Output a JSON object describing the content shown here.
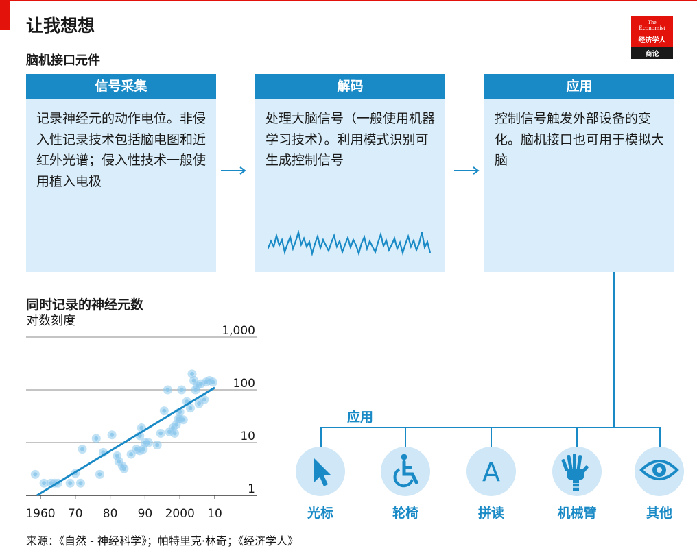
{
  "title": "让我想想",
  "subtitle": "脑机接口元件",
  "logo": {
    "line1": "The",
    "line2": "Economist",
    "line3": "经济学人",
    "line4": "商论"
  },
  "panels": [
    {
      "header": "信号采集",
      "body": "记录神经元的动作电位。非侵入性记录技术包括脑电图和近红外光谱；侵入性技术一般使用植入电极"
    },
    {
      "header": "解码",
      "body": "处理大脑信号（一般使用机器学习技术）。利用模式识别可生成控制信号"
    },
    {
      "header": "应用",
      "body": "控制信号触发外部设备的变化。脑机接口也可用于模拟大脑"
    }
  ],
  "applications": {
    "title": "应用",
    "items": [
      {
        "label": "光标",
        "icon": "cursor-icon"
      },
      {
        "label": "轮椅",
        "icon": "wheelchair-icon"
      },
      {
        "label": "拼读",
        "icon": "letter-a-icon"
      },
      {
        "label": "机械臂",
        "icon": "robot-arm-icon"
      },
      {
        "label": "其他",
        "icon": "eye-icon"
      }
    ]
  },
  "colors": {
    "accent": "#1a8ac6",
    "panel_bg": "#d9eefa",
    "icon_bg": "#cfe7f6",
    "brand_red": "#e3120b",
    "dot": "#8ec9ec"
  },
  "chart_title": "同时记录的神经元数",
  "chart_subtitle": "对数刻度",
  "source": "来源：《自然 - 神经科学》；帕特里克·林奇；《经济学人》",
  "chart_data": {
    "type": "scatter",
    "title": "同时记录的神经元数",
    "subtitle": "对数刻度",
    "y_scale": "log",
    "ylim": [
      1,
      1000
    ],
    "xlim": [
      1958,
      2012
    ],
    "x_ticks": [
      1960,
      1970,
      1980,
      1990,
      2000,
      2010
    ],
    "x_tick_labels": [
      "1960",
      "70",
      "80",
      "90",
      "2000",
      "10"
    ],
    "y_ticks": [
      1,
      10,
      100,
      1000
    ],
    "y_tick_labels": [
      "1",
      "10",
      "100",
      "1,000"
    ],
    "grid": true,
    "trend_line": {
      "x": [
        1959,
        2010
      ],
      "y": [
        1,
        110
      ]
    },
    "points": [
      {
        "x": 1958.5,
        "y": 2.5
      },
      {
        "x": 1961,
        "y": 1.7
      },
      {
        "x": 1963,
        "y": 1.7
      },
      {
        "x": 1964,
        "y": 1.7
      },
      {
        "x": 1965,
        "y": 1.7
      },
      {
        "x": 1968.5,
        "y": 1.7
      },
      {
        "x": 1970,
        "y": 2.6
      },
      {
        "x": 1971.5,
        "y": 1.7
      },
      {
        "x": 1972,
        "y": 7.5
      },
      {
        "x": 1976,
        "y": 12
      },
      {
        "x": 1977,
        "y": 2.5
      },
      {
        "x": 1978,
        "y": 6.5
      },
      {
        "x": 1980.5,
        "y": 14
      },
      {
        "x": 1982,
        "y": 5.6
      },
      {
        "x": 1982.5,
        "y": 4.4
      },
      {
        "x": 1983.5,
        "y": 3.6
      },
      {
        "x": 1984,
        "y": 3.2
      },
      {
        "x": 1986,
        "y": 6
      },
      {
        "x": 1987.5,
        "y": 7.5
      },
      {
        "x": 1988.5,
        "y": 13.5
      },
      {
        "x": 1988.5,
        "y": 7
      },
      {
        "x": 1989,
        "y": 19
      },
      {
        "x": 1989.5,
        "y": 7.5
      },
      {
        "x": 1990,
        "y": 10
      },
      {
        "x": 1991,
        "y": 10
      },
      {
        "x": 1993.5,
        "y": 9
      },
      {
        "x": 1994.5,
        "y": 15
      },
      {
        "x": 1995.5,
        "y": 40
      },
      {
        "x": 1996.5,
        "y": 100
      },
      {
        "x": 1997,
        "y": 16
      },
      {
        "x": 1998,
        "y": 19
      },
      {
        "x": 1998.5,
        "y": 15
      },
      {
        "x": 1999,
        "y": 22
      },
      {
        "x": 1999.5,
        "y": 28
      },
      {
        "x": 2000,
        "y": 28
      },
      {
        "x": 2000,
        "y": 38
      },
      {
        "x": 2000.5,
        "y": 100
      },
      {
        "x": 2001,
        "y": 27
      },
      {
        "x": 2002,
        "y": 60
      },
      {
        "x": 2003,
        "y": 45
      },
      {
        "x": 2003.5,
        "y": 200
      },
      {
        "x": 2004,
        "y": 150
      },
      {
        "x": 2004.5,
        "y": 100
      },
      {
        "x": 2005,
        "y": 120
      },
      {
        "x": 2005.5,
        "y": 55
      },
      {
        "x": 2006,
        "y": 130
      },
      {
        "x": 2007,
        "y": 65
      },
      {
        "x": 2007.5,
        "y": 140
      },
      {
        "x": 2008.5,
        "y": 150
      },
      {
        "x": 2009.5,
        "y": 140
      }
    ]
  }
}
